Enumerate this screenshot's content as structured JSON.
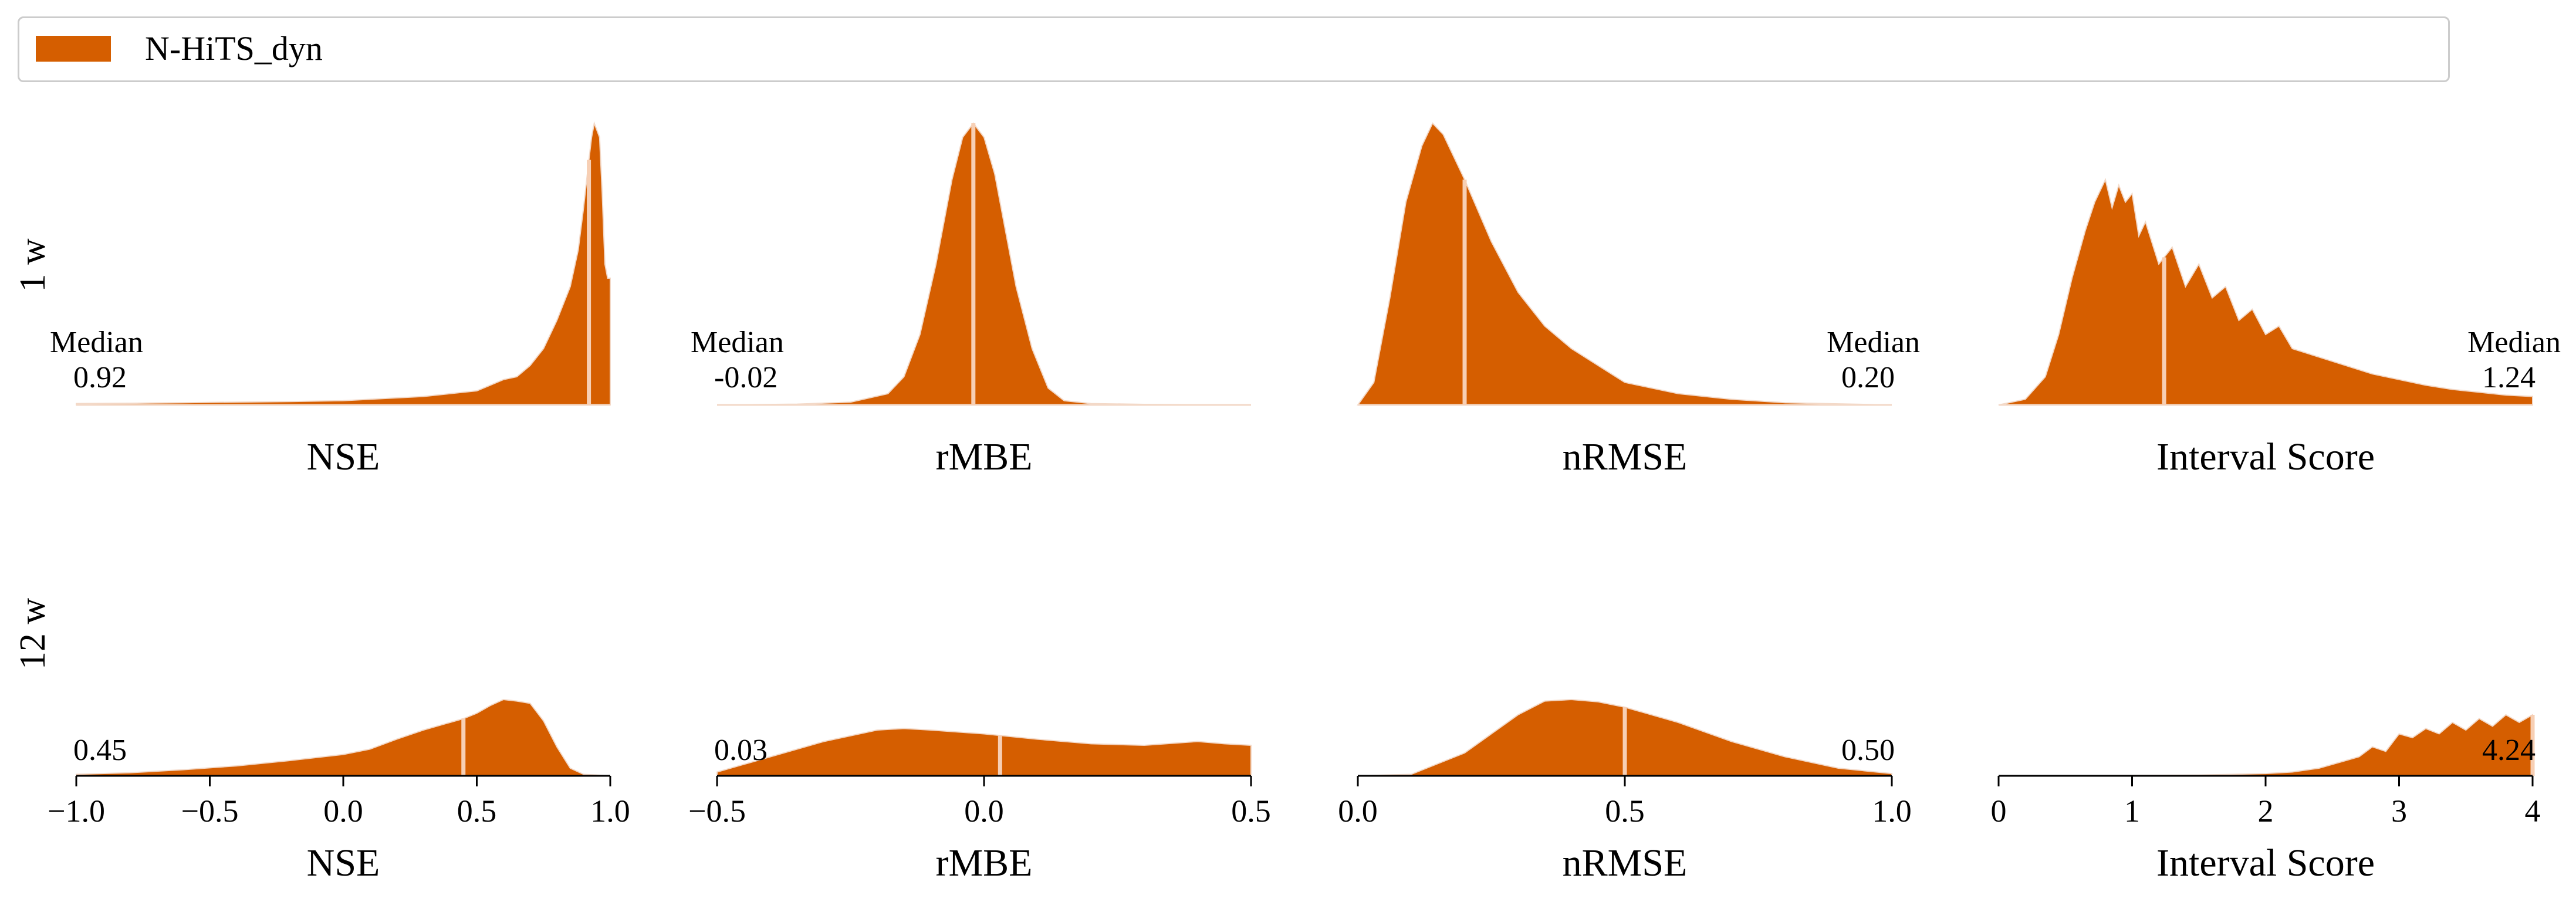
{
  "legend": {
    "label": "N-HiTS_dyn",
    "color": "#d55e00"
  },
  "colors": {
    "fill": "#d55e00",
    "median_line": "#f7cfb4",
    "outline": "#f3d9c8",
    "axis": "#000000"
  },
  "rows": [
    {
      "label": "1 w",
      "median_word": "Median"
    },
    {
      "label": "12 w",
      "median_word": ""
    }
  ],
  "chart_data": [
    {
      "type": "area",
      "row": "1 w",
      "xlabel": "NSE",
      "xlim": [
        -1.0,
        1.0
      ],
      "median": 0.92,
      "median_label": "0.92",
      "median_side": "left",
      "x": [
        -1.0,
        -0.8,
        -0.6,
        -0.4,
        -0.2,
        0.0,
        0.1,
        0.2,
        0.3,
        0.4,
        0.5,
        0.55,
        0.6,
        0.65,
        0.7,
        0.75,
        0.8,
        0.85,
        0.88,
        0.9,
        0.92,
        0.93,
        0.94,
        0.96,
        0.97,
        0.98,
        0.99,
        1.0
      ],
      "y": [
        0.005,
        0.006,
        0.008,
        0.01,
        0.012,
        0.015,
        0.02,
        0.025,
        0.03,
        0.04,
        0.05,
        0.07,
        0.09,
        0.1,
        0.14,
        0.2,
        0.3,
        0.42,
        0.55,
        0.7,
        0.87,
        0.95,
        1.0,
        0.95,
        0.75,
        0.5,
        0.45,
        0.45
      ]
    },
    {
      "type": "area",
      "row": "1 w",
      "xlabel": "rMBE",
      "xlim": [
        -0.5,
        0.5
      ],
      "median": -0.02,
      "median_label": "-0.02",
      "median_side": "left",
      "x": [
        -0.5,
        -0.35,
        -0.25,
        -0.18,
        -0.15,
        -0.12,
        -0.09,
        -0.06,
        -0.04,
        -0.02,
        0.0,
        0.02,
        0.04,
        0.06,
        0.09,
        0.12,
        0.15,
        0.2,
        0.3,
        0.5
      ],
      "y": [
        0.0,
        0.003,
        0.01,
        0.04,
        0.1,
        0.25,
        0.5,
        0.8,
        0.95,
        1.0,
        0.95,
        0.82,
        0.62,
        0.42,
        0.2,
        0.06,
        0.015,
        0.005,
        0.002,
        0.0
      ]
    },
    {
      "type": "area",
      "row": "1 w",
      "xlabel": "nRMSE",
      "xlim": [
        0.0,
        1.0
      ],
      "median": 0.2,
      "median_label": "0.20",
      "median_side": "right",
      "x": [
        0.0,
        0.03,
        0.06,
        0.09,
        0.12,
        0.14,
        0.16,
        0.2,
        0.25,
        0.3,
        0.35,
        0.4,
        0.45,
        0.5,
        0.6,
        0.7,
        0.8,
        1.0
      ],
      "y": [
        0.0,
        0.08,
        0.38,
        0.72,
        0.92,
        1.0,
        0.96,
        0.8,
        0.58,
        0.4,
        0.28,
        0.2,
        0.14,
        0.08,
        0.04,
        0.02,
        0.008,
        0.0
      ]
    },
    {
      "type": "area",
      "row": "1 w",
      "xlabel": "Interval Score",
      "xlim": [
        0,
        4
      ],
      "median": 1.24,
      "median_label": "1.24",
      "median_side": "right",
      "x": [
        0.0,
        0.2,
        0.35,
        0.45,
        0.55,
        0.65,
        0.72,
        0.8,
        0.85,
        0.9,
        0.95,
        1.0,
        1.05,
        1.1,
        1.2,
        1.3,
        1.4,
        1.5,
        1.6,
        1.7,
        1.8,
        1.9,
        2.0,
        2.1,
        2.2,
        2.4,
        2.6,
        2.8,
        3.0,
        3.2,
        3.4,
        3.6,
        3.8,
        4.0
      ],
      "y": [
        0.0,
        0.02,
        0.1,
        0.25,
        0.45,
        0.62,
        0.72,
        0.8,
        0.7,
        0.78,
        0.72,
        0.75,
        0.6,
        0.65,
        0.5,
        0.56,
        0.42,
        0.5,
        0.38,
        0.42,
        0.3,
        0.34,
        0.25,
        0.28,
        0.2,
        0.17,
        0.14,
        0.11,
        0.09,
        0.07,
        0.055,
        0.045,
        0.035,
        0.03
      ]
    },
    {
      "type": "area",
      "row": "12 w",
      "xlabel": "NSE",
      "xlim": [
        -1.0,
        1.0
      ],
      "median": 0.45,
      "median_label": "0.45",
      "median_side": "left",
      "ticks": [
        -1.0,
        -0.5,
        0.0,
        0.5,
        1.0
      ],
      "tick_labels": [
        "−1.0",
        "−0.5",
        "0.0",
        "0.5",
        "1.0"
      ],
      "x": [
        -1.0,
        -0.8,
        -0.6,
        -0.4,
        -0.2,
        0.0,
        0.1,
        0.2,
        0.3,
        0.4,
        0.45,
        0.5,
        0.55,
        0.6,
        0.65,
        0.7,
        0.75,
        0.8,
        0.85,
        0.9,
        1.0
      ],
      "y": [
        0.02,
        0.04,
        0.08,
        0.13,
        0.2,
        0.28,
        0.35,
        0.48,
        0.6,
        0.7,
        0.75,
        0.82,
        0.92,
        1.0,
        0.98,
        0.95,
        0.72,
        0.38,
        0.1,
        0.02,
        0.0
      ]
    },
    {
      "type": "area",
      "row": "12 w",
      "xlabel": "rMBE",
      "xlim": [
        -0.5,
        0.5
      ],
      "median": 0.03,
      "median_label": "0.03",
      "median_side": "left",
      "ticks": [
        -0.5,
        0.0,
        0.5
      ],
      "tick_labels": [
        "−0.5",
        "0.0",
        "0.5"
      ],
      "x": [
        -0.5,
        -0.4,
        -0.3,
        -0.2,
        -0.15,
        -0.1,
        0.0,
        0.1,
        0.2,
        0.3,
        0.4,
        0.45,
        0.5
      ],
      "y": [
        0.05,
        0.25,
        0.45,
        0.6,
        0.62,
        0.6,
        0.55,
        0.48,
        0.42,
        0.4,
        0.45,
        0.42,
        0.4
      ]
    },
    {
      "type": "area",
      "row": "12 w",
      "xlabel": "nRMSE",
      "xlim": [
        0.0,
        1.0
      ],
      "median": 0.5,
      "median_label": "0.50",
      "median_side": "right",
      "ticks": [
        0.0,
        0.5,
        1.0
      ],
      "tick_labels": [
        "0.0",
        "0.5",
        "1.0"
      ],
      "x": [
        0.0,
        0.1,
        0.2,
        0.3,
        0.35,
        0.4,
        0.45,
        0.5,
        0.6,
        0.7,
        0.8,
        0.9,
        1.0
      ],
      "y": [
        0.0,
        0.02,
        0.3,
        0.8,
        0.98,
        1.0,
        0.97,
        0.9,
        0.7,
        0.45,
        0.25,
        0.1,
        0.03
      ]
    },
    {
      "type": "area",
      "row": "12 w",
      "xlabel": "Interval Score",
      "xlim": [
        0,
        4
      ],
      "median": 4.24,
      "median_label": "4.24",
      "median_side": "right",
      "ticks": [
        0,
        1,
        2,
        3,
        4
      ],
      "tick_labels": [
        "0",
        "1",
        "2",
        "3",
        "4"
      ],
      "x": [
        0.0,
        1.0,
        1.5,
        2.0,
        2.2,
        2.4,
        2.6,
        2.7,
        2.8,
        2.9,
        3.0,
        3.1,
        3.2,
        3.3,
        3.4,
        3.5,
        3.6,
        3.7,
        3.8,
        3.9,
        4.0
      ],
      "y": [
        0.0,
        0.005,
        0.01,
        0.03,
        0.05,
        0.1,
        0.2,
        0.25,
        0.38,
        0.32,
        0.55,
        0.5,
        0.62,
        0.55,
        0.7,
        0.6,
        0.75,
        0.65,
        0.8,
        0.7,
        0.8
      ]
    }
  ]
}
